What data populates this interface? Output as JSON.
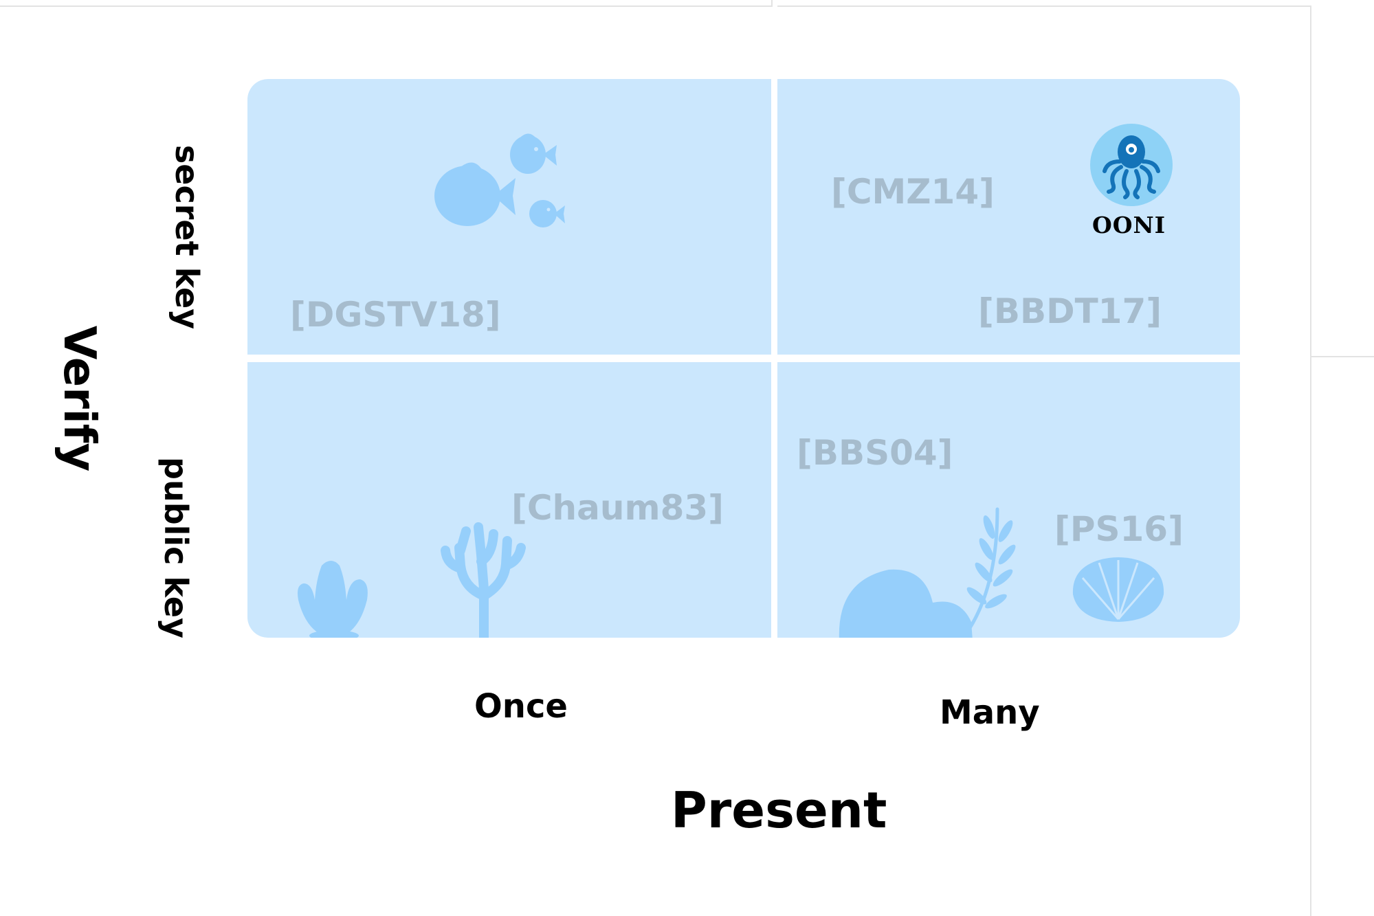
{
  "axes": {
    "y_title": "Verify",
    "y_labels": [
      "secret key",
      "public key"
    ],
    "x_title": "Present",
    "x_labels": [
      "Once",
      "Many"
    ]
  },
  "quadrants": {
    "top_left": {
      "refs": [
        "[DGSTV18]"
      ]
    },
    "top_right": {
      "refs": [
        "[CMZ14]",
        "[BBDT17]"
      ]
    },
    "bottom_left": {
      "refs": [
        "[Chaum83]"
      ]
    },
    "bottom_right": {
      "refs": [
        "[BBS04]",
        "[PS16]"
      ]
    }
  },
  "ooni": {
    "label": "OONI",
    "icon": "octopus-icon"
  },
  "colors": {
    "quadrant_fill": "#cbe7fd",
    "decoration": "#96cffb",
    "reference_text": "#a6bccd",
    "ooni_circle": "#8ed2f6",
    "octopus": "#1473b8"
  }
}
